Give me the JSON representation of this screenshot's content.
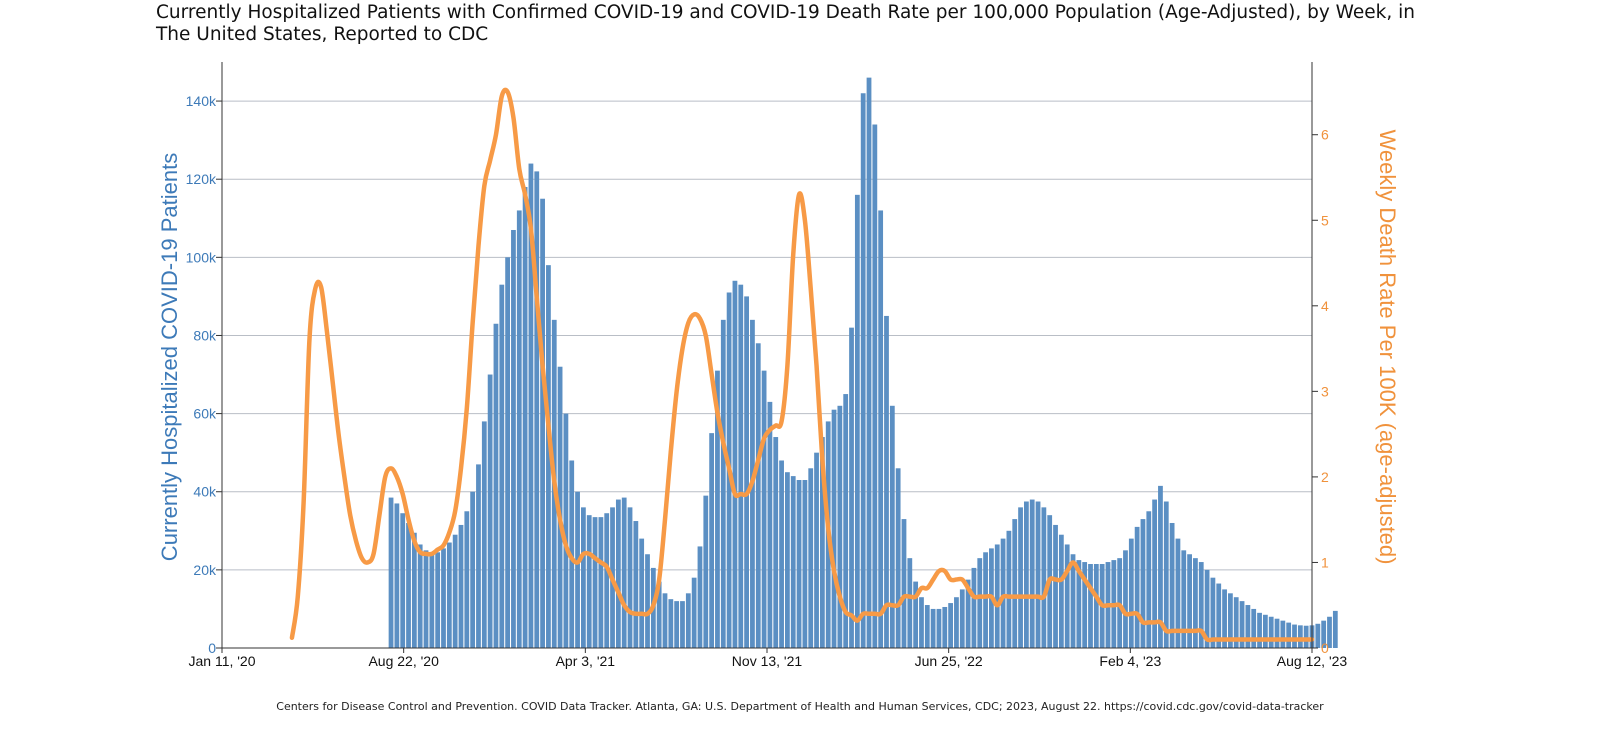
{
  "title": "Currently Hospitalized Patients with Confirmed COVID-19 and COVID-19 Death Rate per 100,000 Population (Age-Adjusted), by Week, in The United States, Reported to CDC",
  "footer": "Centers for Disease Control and Prevention. COVID Data Tracker. Atlanta, GA: U.S. Department of Health and Human Services, CDC; 2023, August 22. https://covid.cdc.gov/covid-data-tracker",
  "colors": {
    "bars": "#5b8fc3",
    "line": "#f79a46",
    "grid": "#b9bec6",
    "left_axis_text": "#3d7ab8",
    "right_axis_text": "#f0923c"
  },
  "chart_data": {
    "type": "bar",
    "title": "Currently Hospitalized Patients with Confirmed COVID-19 and COVID-19 Death Rate per 100,000 Population (Age-Adjusted), by Week, in The United States, Reported to CDC",
    "x_range": [
      "2020-01-11",
      "2023-08-12"
    ],
    "x_tick_labels": [
      "Jan 11, '20",
      "Aug 22, '20",
      "Apr 3, '21",
      "Nov 13, '21",
      "Jun 25, '22",
      "Feb 4, '23",
      "Aug 12, '23"
    ],
    "ylabel": "Currently Hospitalized COVID-19 Patients",
    "y2label": "Weekly Death Rate Per 100K (age-adjusted)",
    "ylim": [
      0,
      150000
    ],
    "y2lim": [
      0,
      6.85
    ],
    "y_tick_labels": [
      "0",
      "20k",
      "40k",
      "60k",
      "80k",
      "100k",
      "120k",
      "140k"
    ],
    "y2_tick_labels": [
      "0",
      "1",
      "2",
      "3",
      "4",
      "5",
      "6"
    ],
    "grid": true,
    "series": [
      {
        "type": "bar",
        "axis": "left",
        "start_week": "2020-08-01",
        "values": [
          38500,
          37000,
          34500,
          32000,
          29500,
          26500,
          25000,
          24000,
          24500,
          25500,
          27000,
          29000,
          31500,
          35000,
          40000,
          47000,
          58000,
          70000,
          83000,
          93000,
          100000,
          107000,
          112000,
          118000,
          124000,
          122000,
          115000,
          98000,
          84000,
          72000,
          60000,
          48000,
          40000,
          36000,
          34000,
          33500,
          33500,
          34500,
          36000,
          38000,
          38500,
          36000,
          32500,
          28000,
          24000,
          20500,
          17000,
          14000,
          12500,
          12000,
          12000,
          14000,
          18000,
          26000,
          39000,
          55000,
          71000,
          84000,
          91000,
          94000,
          93000,
          90000,
          84000,
          78000,
          71000,
          63000,
          54000,
          48000,
          45000,
          44000,
          43000,
          43000,
          46000,
          50000,
          54000,
          58000,
          61000,
          62000,
          65000,
          82000,
          116000,
          142000,
          146000,
          134000,
          112000,
          85000,
          62000,
          46000,
          33000,
          23000,
          17000,
          13000,
          11000,
          10000,
          10000,
          10500,
          11500,
          13000,
          15000,
          17500,
          20500,
          23000,
          24500,
          25500,
          26500,
          28000,
          30000,
          33000,
          36000,
          37500,
          38000,
          37500,
          36000,
          34000,
          31500,
          29000,
          26500,
          24000,
          22500,
          22000,
          21500,
          21500,
          21500,
          22000,
          22500,
          23000,
          25000,
          28000,
          31000,
          33000,
          35000,
          38000,
          41500,
          37500,
          32000,
          28000,
          25000,
          24000,
          23000,
          22000,
          20000,
          18000,
          16500,
          15000,
          14000,
          13000,
          12000,
          11000,
          10000,
          9000,
          8500,
          8000,
          7500,
          7000,
          6500,
          6000,
          5800,
          5700,
          5800,
          6200,
          7000,
          8000,
          9500
        ]
      },
      {
        "type": "line",
        "axis": "right",
        "points": [
          [
            "2020-04-04",
            0.12
          ],
          [
            "2020-04-11",
            0.6
          ],
          [
            "2020-04-18",
            1.7
          ],
          [
            "2020-04-25",
            3.6
          ],
          [
            "2020-05-02",
            4.2
          ],
          [
            "2020-05-09",
            4.22
          ],
          [
            "2020-05-16",
            3.7
          ],
          [
            "2020-05-23",
            3.1
          ],
          [
            "2020-05-30",
            2.5
          ],
          [
            "2020-06-06",
            2.0
          ],
          [
            "2020-06-13",
            1.55
          ],
          [
            "2020-06-20",
            1.25
          ],
          [
            "2020-06-27",
            1.05
          ],
          [
            "2020-07-04",
            1.0
          ],
          [
            "2020-07-11",
            1.1
          ],
          [
            "2020-07-18",
            1.55
          ],
          [
            "2020-07-25",
            2.0
          ],
          [
            "2020-08-01",
            2.1
          ],
          [
            "2020-08-08",
            2.0
          ],
          [
            "2020-08-15",
            1.8
          ],
          [
            "2020-08-22",
            1.5
          ],
          [
            "2020-08-29",
            1.25
          ],
          [
            "2020-09-05",
            1.12
          ],
          [
            "2020-09-12",
            1.1
          ],
          [
            "2020-09-19",
            1.1
          ],
          [
            "2020-09-26",
            1.15
          ],
          [
            "2020-10-03",
            1.2
          ],
          [
            "2020-10-10",
            1.35
          ],
          [
            "2020-10-17",
            1.6
          ],
          [
            "2020-10-24",
            2.1
          ],
          [
            "2020-10-31",
            2.8
          ],
          [
            "2020-11-07",
            3.8
          ],
          [
            "2020-11-14",
            4.7
          ],
          [
            "2020-11-21",
            5.4
          ],
          [
            "2020-11-28",
            5.7
          ],
          [
            "2020-12-05",
            6.0
          ],
          [
            "2020-12-12",
            6.45
          ],
          [
            "2020-12-19",
            6.5
          ],
          [
            "2020-12-26",
            6.2
          ],
          [
            "2021-01-02",
            5.6
          ],
          [
            "2021-01-09",
            5.3
          ],
          [
            "2021-01-16",
            4.9
          ],
          [
            "2021-01-23",
            4.1
          ],
          [
            "2021-01-30",
            3.3
          ],
          [
            "2021-02-06",
            2.6
          ],
          [
            "2021-02-13",
            1.95
          ],
          [
            "2021-02-20",
            1.5
          ],
          [
            "2021-02-27",
            1.2
          ],
          [
            "2021-03-06",
            1.05
          ],
          [
            "2021-03-13",
            1.0
          ],
          [
            "2021-03-20",
            1.1
          ],
          [
            "2021-03-27",
            1.1
          ],
          [
            "2021-04-03",
            1.05
          ],
          [
            "2021-04-10",
            1.0
          ],
          [
            "2021-04-17",
            0.95
          ],
          [
            "2021-04-24",
            0.8
          ],
          [
            "2021-05-01",
            0.65
          ],
          [
            "2021-05-08",
            0.5
          ],
          [
            "2021-05-15",
            0.42
          ],
          [
            "2021-05-22",
            0.4
          ],
          [
            "2021-05-29",
            0.4
          ],
          [
            "2021-06-05",
            0.4
          ],
          [
            "2021-06-12",
            0.5
          ],
          [
            "2021-06-19",
            0.8
          ],
          [
            "2021-06-26",
            1.5
          ],
          [
            "2021-07-03",
            2.3
          ],
          [
            "2021-07-10",
            3.0
          ],
          [
            "2021-07-17",
            3.5
          ],
          [
            "2021-07-24",
            3.8
          ],
          [
            "2021-07-31",
            3.9
          ],
          [
            "2021-08-07",
            3.85
          ],
          [
            "2021-08-14",
            3.65
          ],
          [
            "2021-08-21",
            3.2
          ],
          [
            "2021-08-28",
            2.75
          ],
          [
            "2021-09-04",
            2.4
          ],
          [
            "2021-09-11",
            2.1
          ],
          [
            "2021-09-18",
            1.8
          ],
          [
            "2021-09-25",
            1.8
          ],
          [
            "2021-10-02",
            1.8
          ],
          [
            "2021-10-09",
            1.95
          ],
          [
            "2021-10-16",
            2.2
          ],
          [
            "2021-10-23",
            2.45
          ],
          [
            "2021-10-30",
            2.55
          ],
          [
            "2021-11-06",
            2.6
          ],
          [
            "2021-11-13",
            2.65
          ],
          [
            "2021-11-20",
            3.3
          ],
          [
            "2021-11-27",
            4.6
          ],
          [
            "2021-12-04",
            5.3
          ],
          [
            "2021-12-11",
            5.0
          ],
          [
            "2021-12-18",
            4.2
          ],
          [
            "2021-12-25",
            3.3
          ],
          [
            "2022-01-01",
            2.2
          ],
          [
            "2022-01-08",
            1.4
          ],
          [
            "2022-01-15",
            0.9
          ],
          [
            "2022-01-22",
            0.6
          ],
          [
            "2022-01-29",
            0.42
          ],
          [
            "2022-02-05",
            0.38
          ],
          [
            "2022-02-12",
            0.32
          ],
          [
            "2022-02-19",
            0.4
          ],
          [
            "2022-02-26",
            0.4
          ],
          [
            "2022-03-05",
            0.4
          ],
          [
            "2022-03-12",
            0.4
          ],
          [
            "2022-03-19",
            0.5
          ],
          [
            "2022-03-26",
            0.5
          ],
          [
            "2022-04-02",
            0.5
          ],
          [
            "2022-04-09",
            0.6
          ],
          [
            "2022-04-16",
            0.6
          ],
          [
            "2022-04-23",
            0.6
          ],
          [
            "2022-04-30",
            0.7
          ],
          [
            "2022-05-07",
            0.7
          ],
          [
            "2022-05-14",
            0.8
          ],
          [
            "2022-05-21",
            0.9
          ],
          [
            "2022-05-28",
            0.9
          ],
          [
            "2022-06-04",
            0.8
          ],
          [
            "2022-06-11",
            0.8
          ],
          [
            "2022-06-18",
            0.8
          ],
          [
            "2022-06-25",
            0.7
          ],
          [
            "2022-07-02",
            0.6
          ],
          [
            "2022-07-09",
            0.6
          ],
          [
            "2022-07-16",
            0.6
          ],
          [
            "2022-07-23",
            0.6
          ],
          [
            "2022-07-30",
            0.5
          ],
          [
            "2022-08-06",
            0.6
          ],
          [
            "2022-08-13",
            0.6
          ],
          [
            "2022-08-20",
            0.6
          ],
          [
            "2022-08-27",
            0.6
          ],
          [
            "2022-09-03",
            0.6
          ],
          [
            "2022-09-10",
            0.6
          ],
          [
            "2022-09-17",
            0.6
          ],
          [
            "2022-09-24",
            0.6
          ],
          [
            "2022-10-01",
            0.8
          ],
          [
            "2022-10-08",
            0.8
          ],
          [
            "2022-10-15",
            0.8
          ],
          [
            "2022-10-22",
            0.9
          ],
          [
            "2022-10-29",
            1.0
          ],
          [
            "2022-11-05",
            0.9
          ],
          [
            "2022-11-12",
            0.8
          ],
          [
            "2022-11-19",
            0.7
          ],
          [
            "2022-11-26",
            0.6
          ],
          [
            "2022-12-03",
            0.5
          ],
          [
            "2022-12-10",
            0.5
          ],
          [
            "2022-12-17",
            0.5
          ],
          [
            "2022-12-24",
            0.5
          ],
          [
            "2022-12-31",
            0.4
          ],
          [
            "2023-01-07",
            0.4
          ],
          [
            "2023-01-14",
            0.4
          ],
          [
            "2023-01-21",
            0.3
          ],
          [
            "2023-01-28",
            0.3
          ],
          [
            "2023-02-04",
            0.3
          ],
          [
            "2023-02-11",
            0.3
          ],
          [
            "2023-02-18",
            0.2
          ],
          [
            "2023-02-25",
            0.2
          ],
          [
            "2023-03-04",
            0.2
          ],
          [
            "2023-03-11",
            0.2
          ],
          [
            "2023-03-18",
            0.2
          ],
          [
            "2023-03-25",
            0.2
          ],
          [
            "2023-04-01",
            0.2
          ],
          [
            "2023-04-08",
            0.1
          ],
          [
            "2023-04-15",
            0.1
          ],
          [
            "2023-04-22",
            0.1
          ],
          [
            "2023-04-29",
            0.1
          ],
          [
            "2023-05-06",
            0.1
          ],
          [
            "2023-05-13",
            0.1
          ],
          [
            "2023-05-20",
            0.1
          ],
          [
            "2023-05-27",
            0.1
          ],
          [
            "2023-06-03",
            0.1
          ],
          [
            "2023-06-10",
            0.1
          ],
          [
            "2023-06-17",
            0.1
          ],
          [
            "2023-06-24",
            0.1
          ],
          [
            "2023-07-01",
            0.1
          ],
          [
            "2023-07-08",
            0.1
          ],
          [
            "2023-07-15",
            0.1
          ],
          [
            "2023-07-22",
            0.1
          ],
          [
            "2023-07-29",
            0.1
          ],
          [
            "2023-08-05",
            0.1
          ],
          [
            "2023-08-12",
            0.1
          ]
        ]
      }
    ]
  }
}
